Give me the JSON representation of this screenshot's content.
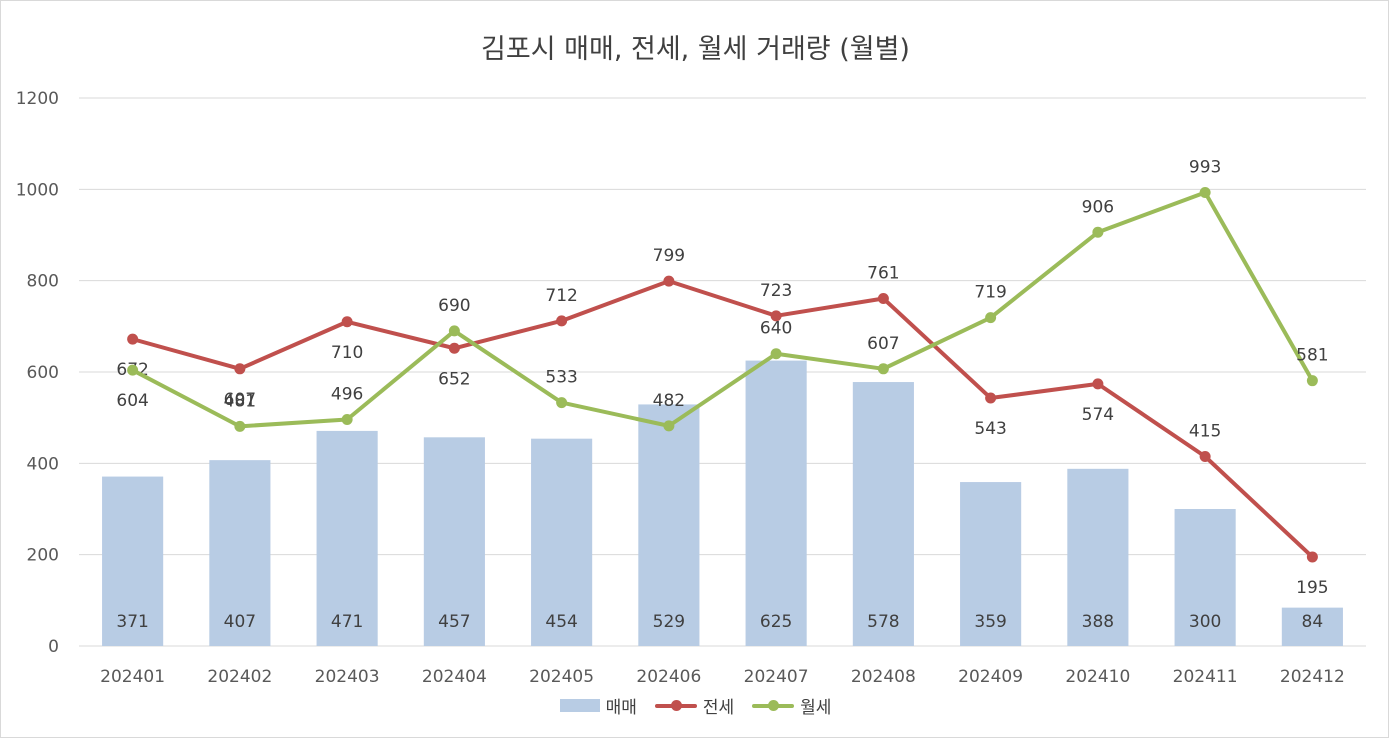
{
  "title": "김포시 매매, 전세, 월세 거래량 (월별)",
  "chart_data": {
    "type": "bar+line",
    "title": "김포시 매매, 전세, 월세 거래량 (월별)",
    "categories": [
      "202401",
      "202402",
      "202403",
      "202404",
      "202405",
      "202406",
      "202407",
      "202408",
      "202409",
      "202410",
      "202411",
      "202412"
    ],
    "ylim": [
      0,
      1200
    ],
    "yticks": [
      0,
      200,
      400,
      600,
      800,
      1000,
      1200
    ],
    "grid": true,
    "legend_position": "bottom",
    "series": [
      {
        "name": "매매",
        "type": "bar",
        "color": "#b8cce4",
        "values": [
          371,
          407,
          471,
          457,
          454,
          529,
          625,
          578,
          359,
          388,
          300,
          84
        ]
      },
      {
        "name": "전세",
        "type": "line",
        "color": "#c0504d",
        "values": [
          672,
          607,
          710,
          652,
          712,
          799,
          723,
          761,
          543,
          574,
          415,
          195
        ]
      },
      {
        "name": "월세",
        "type": "line",
        "color": "#9bbb59",
        "values": [
          604,
          481,
          496,
          690,
          533,
          482,
          640,
          607,
          719,
          906,
          993,
          581
        ]
      }
    ]
  }
}
